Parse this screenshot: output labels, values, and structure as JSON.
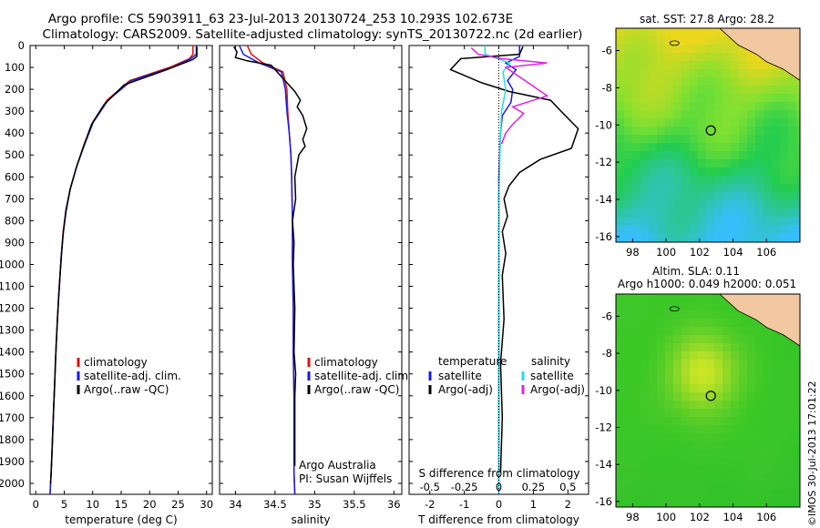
{
  "titles": {
    "line1": "Argo profile: CS 5903911_63 23-Jul-2013 20130724_253 10.293S 102.673E",
    "line2": "Climatology: CARS2009. Satellite-adjusted climatology: synTS_20130722.nc (2d earlier)"
  },
  "side_text": "©IMOS 30-Jul-2013 17:01:22",
  "colors": {
    "climatology": "#e01010",
    "satellite": "#1a1ae0",
    "argo": "#000000",
    "sal_satellite": "#22e0e0",
    "sal_argo": "#e020e0",
    "land": "#f2c8a0"
  },
  "chart_data": [
    {
      "type": "line",
      "id": "temperature-profile",
      "xlabel": "temperature (deg C)",
      "ylabel": "",
      "xlim": [
        -1,
        31
      ],
      "ylim": [
        2050,
        0
      ],
      "xticks": [
        0,
        5,
        10,
        15,
        20,
        25,
        30
      ],
      "yticks": [
        0,
        100,
        200,
        300,
        400,
        500,
        600,
        700,
        800,
        900,
        1000,
        1100,
        1200,
        1300,
        1400,
        1500,
        1600,
        1700,
        1800,
        1900,
        2000
      ],
      "legend": [
        "climatology",
        "satellite-adj. clim.",
        "Argo(..raw -QC)"
      ],
      "legend_position": "lower-middle",
      "series": [
        {
          "name": "climatology",
          "color": "#e01010",
          "x": [
            27.6,
            27.6,
            27.0,
            23.5,
            16.5,
            12.5,
            10.0,
            8.5,
            7.2,
            6.1,
            5.3,
            4.8,
            4.5,
            4.25,
            4.0,
            3.8,
            3.6,
            3.45,
            3.3,
            3.15,
            3.0,
            2.85,
            2.7,
            2.6,
            2.5
          ],
          "y": [
            0,
            40,
            60,
            100,
            160,
            250,
            350,
            450,
            550,
            650,
            750,
            850,
            950,
            1050,
            1150,
            1250,
            1350,
            1450,
            1550,
            1650,
            1750,
            1850,
            1950,
            2000,
            2050
          ]
        },
        {
          "name": "satellite-adj. clim.",
          "color": "#1a1ae0",
          "x": [
            28.2,
            28.2,
            27.2,
            24.0,
            16.8,
            12.7,
            10.1,
            8.6,
            7.2,
            6.1,
            5.3,
            4.85,
            4.5,
            4.25,
            4.0,
            3.8,
            3.6,
            3.45,
            3.3,
            3.15,
            3.0,
            2.85,
            2.7,
            2.6,
            2.5
          ],
          "y": [
            0,
            40,
            60,
            100,
            160,
            250,
            350,
            450,
            550,
            650,
            750,
            850,
            950,
            1050,
            1150,
            1250,
            1350,
            1450,
            1550,
            1650,
            1750,
            1850,
            1950,
            2000,
            2050
          ]
        },
        {
          "name": "Argo(..raw -QC)",
          "color": "#000000",
          "x": [
            28.3,
            28.3,
            27.5,
            23.0,
            15.5,
            12.0,
            9.8,
            8.4,
            7.1,
            6.0,
            5.3,
            4.8,
            4.5,
            4.25,
            4.0,
            3.8,
            3.6,
            3.45,
            3.3,
            3.15,
            3.0,
            2.85,
            2.7,
            2.6
          ],
          "y": [
            5,
            50,
            65,
            110,
            180,
            270,
            360,
            460,
            560,
            660,
            760,
            860,
            960,
            1060,
            1160,
            1260,
            1360,
            1460,
            1560,
            1660,
            1760,
            1860,
            1960,
            2000
          ]
        }
      ]
    },
    {
      "type": "line",
      "id": "salinity-profile",
      "xlabel": "salinity",
      "xlim": [
        33.8,
        36.1
      ],
      "ylim": [
        2050,
        0
      ],
      "xticks": [
        34,
        34.5,
        35,
        35.5,
        36
      ],
      "legend": [
        "climatology",
        "satellite-adj. clim.",
        "Argo(..raw -QC)"
      ],
      "legend_position": "lower-right",
      "annotation": [
        "Argo Australia",
        "PI: Susan Wijffels"
      ],
      "series": [
        {
          "name": "climatology",
          "color": "#e01010",
          "x": [
            34.15,
            34.2,
            34.35,
            34.6,
            34.65,
            34.66,
            34.68,
            34.7,
            34.71,
            34.72,
            34.72,
            34.73,
            34.73,
            34.74,
            34.74,
            34.74,
            34.75
          ],
          "y": [
            0,
            40,
            80,
            120,
            200,
            300,
            400,
            500,
            600,
            800,
            1000,
            1200,
            1400,
            1600,
            1800,
            1950,
            2050
          ]
        },
        {
          "name": "satellite-adj. clim.",
          "color": "#1a1ae0",
          "x": [
            34.05,
            34.1,
            34.3,
            34.58,
            34.63,
            34.65,
            34.68,
            34.7,
            34.71,
            34.72,
            34.72,
            34.73,
            34.73,
            34.74,
            34.74,
            34.74,
            34.75
          ],
          "y": [
            0,
            40,
            80,
            120,
            200,
            300,
            400,
            500,
            600,
            800,
            1000,
            1200,
            1400,
            1600,
            1800,
            1950,
            2050
          ]
        },
        {
          "name": "Argo(..raw -QC)",
          "color": "#000000",
          "x": [
            33.98,
            34.02,
            34.0,
            34.15,
            34.45,
            34.6,
            34.75,
            34.82,
            34.78,
            34.85,
            34.9,
            34.85,
            34.88,
            34.8,
            34.75,
            34.76,
            34.72,
            34.74,
            34.73,
            34.74,
            34.75,
            34.74,
            34.76,
            34.75,
            34.75,
            34.75
          ],
          "y": [
            5,
            30,
            55,
            70,
            90,
            150,
            210,
            250,
            280,
            320,
            380,
            430,
            460,
            500,
            600,
            700,
            800,
            900,
            1000,
            1100,
            1200,
            1400,
            1500,
            1600,
            1800,
            1920
          ]
        }
      ]
    },
    {
      "type": "line",
      "id": "difference-profile",
      "xlabel": "T difference from climatology",
      "x2label": "S difference from climatology",
      "xlim": [
        -2.6,
        2.6
      ],
      "ylim": [
        2050,
        0
      ],
      "xticks": [
        -2,
        -1,
        0,
        1,
        2
      ],
      "x2ticks": [
        -0.5,
        -0.25,
        0,
        0.25,
        0.5
      ],
      "x2tick_labels": [
        "-0.5",
        "-0.25",
        "0",
        "0.25",
        "0.5"
      ],
      "legend_temperature": {
        "title": "temperature",
        "items": [
          "satellite",
          "Argo(-adj)"
        ]
      },
      "legend_salinity": {
        "title": "salinity",
        "items": [
          "satellite",
          "Argo(-adj)"
        ]
      },
      "series": [
        {
          "name": "temperature satellite",
          "color": "#1a1ae0",
          "x": [
            0.6,
            0.6,
            0.2,
            0.5,
            0.25,
            0.4,
            0.35,
            0.1,
            0.05,
            0.0,
            0.0,
            0.0,
            0.0,
            0.0
          ],
          "y": [
            0,
            50,
            80,
            110,
            160,
            200,
            260,
            320,
            400,
            600,
            900,
            1200,
            1600,
            2050
          ]
        },
        {
          "name": "temperature Argo(-adj)",
          "color": "#000000",
          "x": [
            0.7,
            0.6,
            -1.1,
            -1.4,
            -0.5,
            0.3,
            1.5,
            1.8,
            2.3,
            2.1,
            1.2,
            0.6,
            0.3,
            0.15,
            0.25,
            0.1,
            0.2,
            0.1,
            0.15,
            0.05,
            0.1,
            0.05
          ],
          "y": [
            5,
            40,
            60,
            110,
            170,
            210,
            250,
            300,
            380,
            470,
            520,
            580,
            640,
            700,
            780,
            850,
            950,
            1050,
            1250,
            1450,
            1700,
            1950
          ]
        },
        {
          "name": "salinity satellite",
          "color": "#22e0e0",
          "x": [
            -0.1,
            -0.1,
            0.08,
            0.03,
            0.05,
            0.02,
            0.01,
            0.0,
            0.0,
            0.0,
            0.0,
            0.0
          ],
          "y": [
            0,
            40,
            80,
            120,
            200,
            300,
            450,
            700,
            1000,
            1400,
            1800,
            2050
          ]
        },
        {
          "name": "salinity Argo(-adj)",
          "color": "#e020e0",
          "x": [
            -0.2,
            -0.15,
            0.02,
            0.35,
            0.05,
            0.35,
            0.1,
            0.18,
            0.1,
            0.05,
            0.02
          ],
          "y": [
            10,
            40,
            60,
            80,
            100,
            230,
            280,
            310,
            360,
            400,
            450
          ]
        }
      ]
    },
    {
      "type": "heatmap",
      "id": "sst-map",
      "title": "sat. SST: 27.8  Argo: 28.2",
      "xticks": [
        98,
        100,
        102,
        104,
        106
      ],
      "yticks": [
        -6,
        -8,
        -10,
        -12,
        -14,
        -16
      ],
      "xlim": [
        97,
        108
      ],
      "ylim": [
        -16.3,
        -4.8
      ],
      "argo_position": {
        "lon": 102.673,
        "lat": -10.293
      }
    },
    {
      "type": "heatmap",
      "id": "sla-map",
      "title_lines": [
        "Altim. SLA: 0.11",
        "Argo h1000: 0.049 h2000: 0.051"
      ],
      "xticks": [
        98,
        100,
        102,
        104,
        106
      ],
      "yticks": [
        -6,
        -8,
        -10,
        -12,
        -14,
        -16
      ],
      "xlim": [
        97,
        108
      ],
      "ylim": [
        -16.3,
        -4.8
      ],
      "argo_position": {
        "lon": 102.673,
        "lat": -10.293
      }
    }
  ]
}
